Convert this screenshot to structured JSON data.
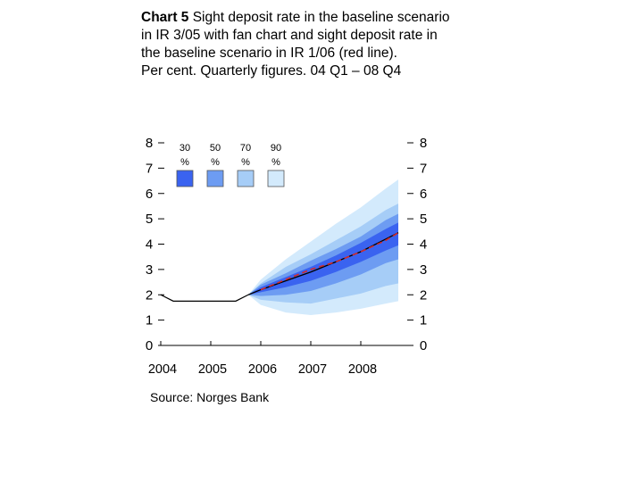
{
  "chart_data": {
    "type": "area",
    "title_bold": "Chart 5",
    "title": "Sight deposit rate in the baseline scenario in IR 3/05 with fan chart and sight deposit rate in the baseline scenario in IR 1/06 (red line).",
    "subtitle": "Per cent. Quarterly figures. 04 Q1 – 08 Q4",
    "source": "Source: Norges Bank",
    "ylim": [
      0,
      8
    ],
    "y_ticks": [
      "0",
      "1",
      "2",
      "3",
      "4",
      "5",
      "6",
      "7",
      "8"
    ],
    "x_ticks": [
      "2004",
      "2005",
      "2006",
      "2007",
      "2008"
    ],
    "legend": [
      {
        "label": "30 %",
        "color": "#3a63f0"
      },
      {
        "label": "50 %",
        "color": "#6d9cf2"
      },
      {
        "label": "70 %",
        "color": "#a6cdf7"
      },
      {
        "label": "90 %",
        "color": "#d3eafc"
      }
    ],
    "history": {
      "name": "baseline IR 3/05 (history)",
      "x": [
        2004.0,
        2004.25,
        2004.5,
        2004.75,
        2005.0,
        2005.25,
        2005.5,
        2005.75
      ],
      "y": [
        2.0,
        1.75,
        1.75,
        1.75,
        1.75,
        1.75,
        1.75,
        2.0
      ]
    },
    "fan": {
      "x": [
        2005.75,
        2006.0,
        2006.5,
        2007.0,
        2007.5,
        2008.0,
        2008.5,
        2008.75
      ],
      "median": [
        2.0,
        2.2,
        2.55,
        2.9,
        3.3,
        3.7,
        4.2,
        4.45
      ],
      "bands": [
        {
          "name": "90 %",
          "color": "#d3eafc",
          "lower": [
            2.0,
            1.6,
            1.3,
            1.2,
            1.3,
            1.45,
            1.65,
            1.75
          ],
          "upper": [
            2.0,
            2.6,
            3.4,
            4.1,
            4.8,
            5.45,
            6.2,
            6.55
          ]
        },
        {
          "name": "70 %",
          "color": "#a6cdf7",
          "lower": [
            2.0,
            1.8,
            1.7,
            1.65,
            1.85,
            2.05,
            2.35,
            2.45
          ],
          "upper": [
            2.0,
            2.45,
            3.1,
            3.6,
            4.15,
            4.7,
            5.35,
            5.6
          ]
        },
        {
          "name": "50 %",
          "color": "#6d9cf2",
          "lower": [
            2.0,
            1.95,
            2.0,
            2.15,
            2.45,
            2.8,
            3.25,
            3.4
          ],
          "upper": [
            2.0,
            2.4,
            2.85,
            3.35,
            3.8,
            4.3,
            4.95,
            5.2
          ]
        },
        {
          "name": "30 %",
          "color": "#3a63f0",
          "lower": [
            2.0,
            2.1,
            2.3,
            2.55,
            2.9,
            3.3,
            3.75,
            3.95
          ],
          "upper": [
            2.0,
            2.3,
            2.7,
            3.1,
            3.55,
            4.05,
            4.6,
            4.85
          ]
        }
      ]
    },
    "red_line": {
      "name": "sight deposit rate IR 1/06",
      "color": "#d22a2a",
      "x": [
        2006.0,
        2006.5,
        2007.0,
        2007.5,
        2008.0,
        2008.5,
        2008.75
      ],
      "y": [
        2.2,
        2.6,
        3.0,
        3.3,
        3.7,
        4.15,
        4.45
      ]
    }
  }
}
